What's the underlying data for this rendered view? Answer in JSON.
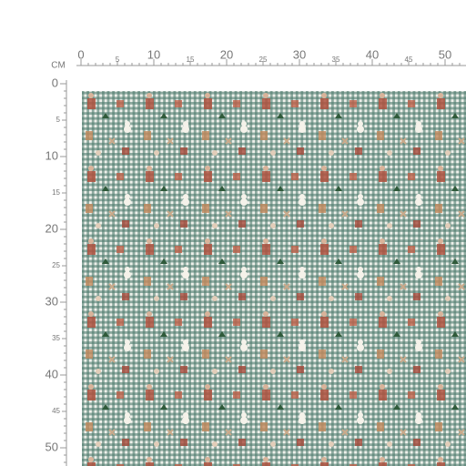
{
  "ruler": {
    "unit": "CM",
    "top_labels": [
      "0",
      "5",
      "10",
      "15",
      "20",
      "25",
      "30",
      "35",
      "40",
      "45",
      "50"
    ],
    "left_labels": [
      "0",
      "5",
      "10",
      "15",
      "20",
      "25",
      "30",
      "35",
      "40",
      "45",
      "50"
    ]
  }
}
